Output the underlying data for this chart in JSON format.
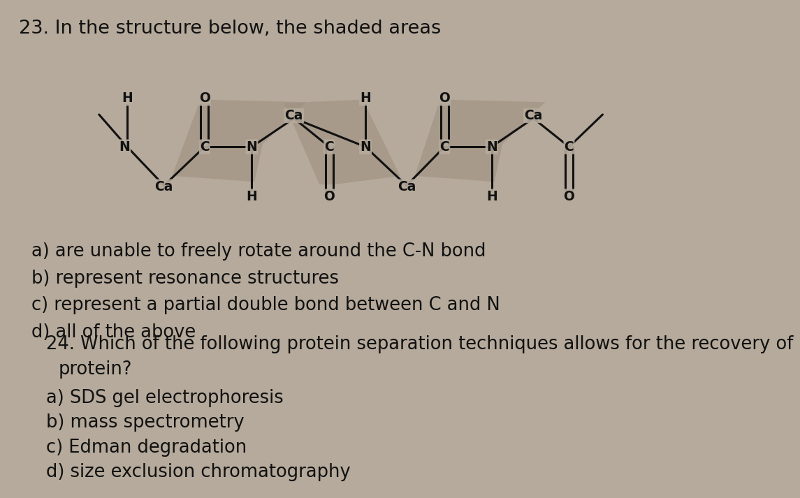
{
  "background_color": "#b5aa9b",
  "title_text": "23. In the structure below, the shaded areas",
  "q23_options": [
    "a) are unable to freely rotate around the C-N bond",
    "b) represent resonance structures",
    "c) represent a partial double bond between C and N",
    "d) all of the above"
  ],
  "q24_line1": "24. Which of the following protein separation techniques allows for the recovery of",
  "q24_line2": "      protein?",
  "q24_options": [
    "a) SDS gel electrophoresis",
    "b) mass spectrometry",
    "c) Edman degradation",
    "d) size exclusion chromatography"
  ],
  "shading_color": "#9e9080",
  "shading_alpha": 0.6,
  "bond_color": "#111111",
  "atom_color": "#111111"
}
